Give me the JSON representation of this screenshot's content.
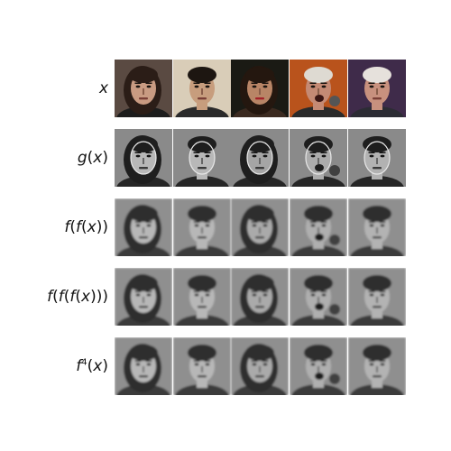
{
  "figure": {
    "rows": [
      {
        "id": "x",
        "label_parts": [
          [
            "x",
            true
          ]
        ],
        "kind": "photo"
      },
      {
        "id": "g",
        "label_parts": [
          [
            "g",
            true
          ],
          [
            "(",
            false
          ],
          [
            "x",
            true
          ],
          [
            ")",
            false
          ]
        ],
        "kind": "gray-sharp"
      },
      {
        "id": "ff",
        "label_parts": [
          [
            "f",
            true
          ],
          [
            "(",
            false
          ],
          [
            "f",
            true
          ],
          [
            "(",
            false
          ],
          [
            "x",
            true
          ],
          [
            "))",
            false
          ]
        ],
        "kind": "gray-soft"
      },
      {
        "id": "fff",
        "label_parts": [
          [
            "f",
            true
          ],
          [
            "(",
            false
          ],
          [
            "f",
            true
          ],
          [
            "(",
            false
          ],
          [
            "f",
            true
          ],
          [
            "(",
            false
          ],
          [
            "x",
            true
          ],
          [
            ")))",
            false
          ]
        ],
        "kind": "gray-soft"
      },
      {
        "id": "f4",
        "label_parts": [
          [
            "f",
            true
          ]
        ],
        "label_sup": "4",
        "label_tail_parts": [
          [
            "(",
            false
          ],
          [
            "x",
            true
          ],
          [
            ")",
            false
          ]
        ],
        "kind": "gray-soft"
      }
    ],
    "columns": [
      {
        "subject": "woman-dark-hair",
        "bg": "#5a4a42",
        "skin": "#c99b82",
        "hair": "#2b1d17",
        "shirt": "#1c1c1c"
      },
      {
        "subject": "man-smiling",
        "bg": "#d9cdb8",
        "skin": "#c79d7d",
        "hair": "#1d1611",
        "shirt": "#2a2a2a"
      },
      {
        "subject": "woman-red-lips",
        "bg": "#1a1a14",
        "skin": "#b88566",
        "hair": "#24170f",
        "shirt": "#3b2a20"
      },
      {
        "subject": "man-singing",
        "bg": "#b9531c",
        "skin": "#c48a74",
        "hair": "#dedad2",
        "shirt": "#2a2a2a"
      },
      {
        "subject": "older-man",
        "bg": "#3f2b4a",
        "skin": "#c8917e",
        "hair": "#e6e1dc",
        "shirt": "#2c2c34"
      }
    ]
  }
}
